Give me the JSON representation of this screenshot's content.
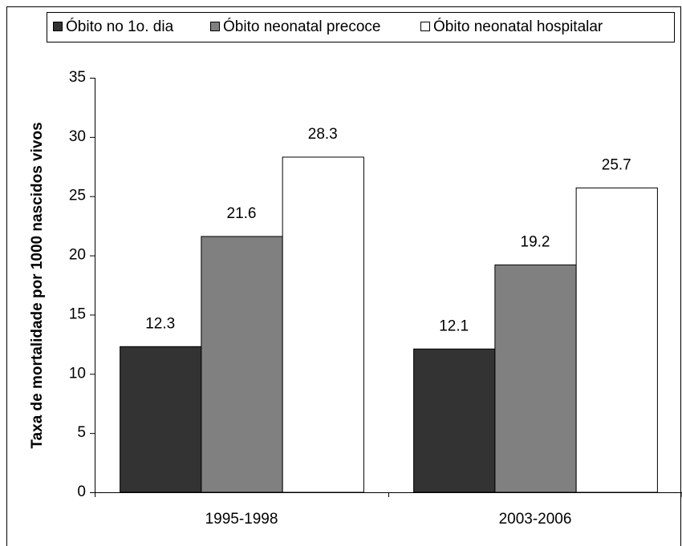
{
  "chart_data": {
    "type": "bar",
    "y_label": "Taxa de mortalidade por 1000 nascidos vivos",
    "categories": [
      "1995-1998",
      "2003-2006"
    ],
    "series": [
      {
        "name": "Óbito no 1o. dia",
        "color": "#333333",
        "values": [
          12.3,
          12.1
        ]
      },
      {
        "name": "Óbito neonatal precoce",
        "color": "#808080",
        "values": [
          21.6,
          19.2
        ]
      },
      {
        "name": "Óbito neonatal hospitalar",
        "color": "#ffffff",
        "values": [
          28.3,
          25.7
        ]
      }
    ],
    "ylim": [
      0,
      35
    ],
    "yticks": [
      0,
      5,
      10,
      15,
      20,
      25,
      30,
      35
    ],
    "grid": false,
    "legend": "top"
  }
}
